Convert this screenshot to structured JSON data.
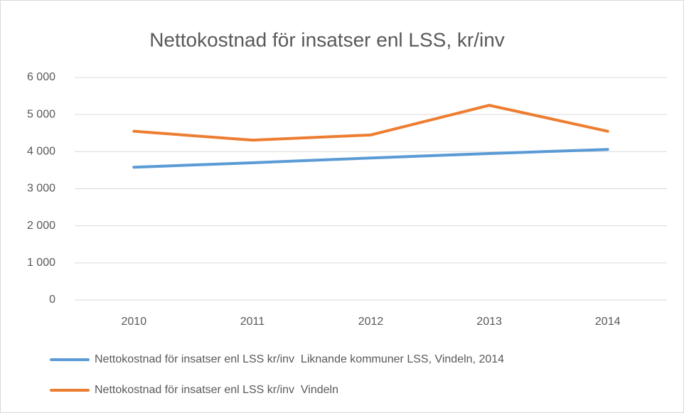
{
  "chart_data": {
    "type": "line",
    "title": "Nettokostnad för insatser enl LSS, kr/inv",
    "categories": [
      "2010",
      "2011",
      "2012",
      "2013",
      "2014"
    ],
    "series": [
      {
        "name": "Nettokostnad för insatser enl LSS kr/inv  Liknande kommuner LSS, Vindeln, 2014",
        "color": "#5b9bd5",
        "values": [
          3580,
          3700,
          3830,
          3950,
          4060
        ]
      },
      {
        "name": "Nettokostnad för insatser enl LSS kr/inv  Vindeln",
        "color": "#ed7d31",
        "values": [
          4550,
          4310,
          4450,
          5250,
          4550
        ]
      }
    ],
    "ylim": [
      0,
      6000
    ],
    "yticks": [
      0,
      {
        "value": 1000,
        "label": "1 000"
      },
      {
        "value": 2000,
        "label": "2 000"
      },
      {
        "value": 3000,
        "label": "3 000"
      },
      {
        "value": 4000,
        "label": "4 000"
      },
      {
        "value": 5000,
        "label": "5 000"
      },
      {
        "value": 6000,
        "label": "6 000"
      }
    ],
    "grid": true
  }
}
